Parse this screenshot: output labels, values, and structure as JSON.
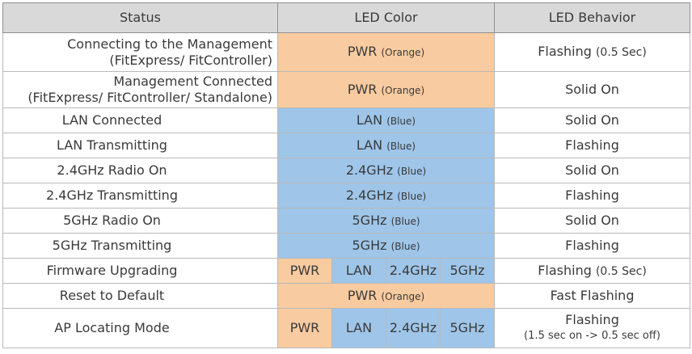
{
  "headers": {
    "status": "Status",
    "color": "LED Color",
    "behavior": "LED Behavior"
  },
  "colors": {
    "orange": "#f8cba0",
    "blue": "#9fc5e8",
    "header_bg": "#d9d9d9"
  },
  "rows": [
    {
      "status_l1": "Connecting to the Management",
      "status_l2": "(FitExpress/ FitController)",
      "color_main": "PWR",
      "color_note": "(Orange)",
      "behavior_main": "Flashing",
      "behavior_note": "(0.5 Sec)"
    },
    {
      "status_l1": "Management Connected",
      "status_l2": "(FitExpress/ FitController/ Standalone)",
      "color_main": "PWR",
      "color_note": "(Orange)",
      "behavior_main": "Solid On"
    },
    {
      "status": "LAN Connected",
      "color_main": "LAN",
      "color_note": "(Blue)",
      "behavior_main": "Solid On"
    },
    {
      "status": "LAN Transmitting",
      "color_main": "LAN",
      "color_note": "(Blue)",
      "behavior_main": "Flashing"
    },
    {
      "status": "2.4GHz Radio On",
      "color_main": "2.4GHz",
      "color_note": "(Blue)",
      "behavior_main": "Solid On"
    },
    {
      "status": "2.4GHz Transmitting",
      "color_main": "2.4GHz",
      "color_note": "(Blue)",
      "behavior_main": "Flashing"
    },
    {
      "status": "5GHz Radio On",
      "color_main": "5GHz",
      "color_note": "(Blue)",
      "behavior_main": "Solid On"
    },
    {
      "status": "5GHz Transmitting",
      "color_main": "5GHz",
      "color_note": "(Blue)",
      "behavior_main": "Flashing"
    },
    {
      "status": "Firmware Upgrading",
      "leds": [
        "PWR",
        "LAN",
        "2.4GHz",
        "5GHz"
      ],
      "behavior_main": "Flashing",
      "behavior_note": "(0.5 Sec)"
    },
    {
      "status": "Reset to Default",
      "color_main": "PWR",
      "color_note": "(Orange)",
      "behavior_main": "Fast Flashing"
    },
    {
      "status": "AP Locating Mode",
      "leds": [
        "PWR",
        "LAN",
        "2.4GHz",
        "5GHz"
      ],
      "behavior_main": "Flashing",
      "behavior_note": "(1.5 sec on -> 0.5 sec off)"
    }
  ]
}
